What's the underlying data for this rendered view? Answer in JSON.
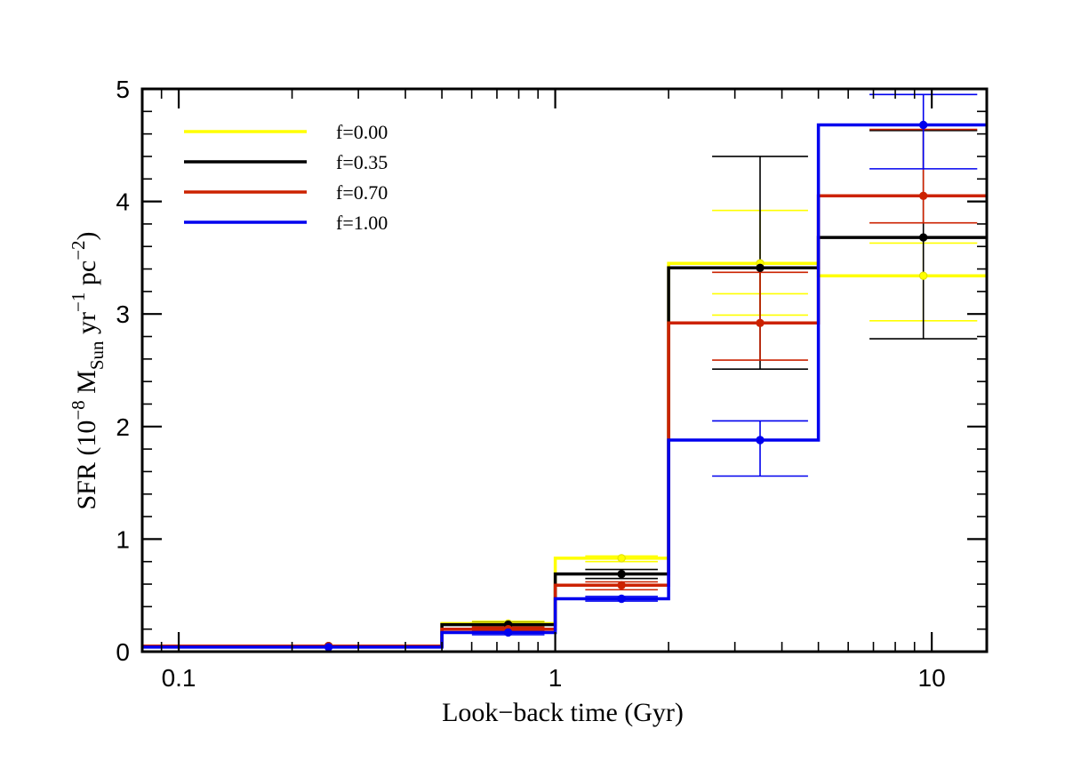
{
  "chart_data": {
    "type": "line",
    "subtype": "step-histogram-with-errorbars",
    "xscale": "log",
    "xlim": [
      0.08,
      14
    ],
    "ylim": [
      0,
      5
    ],
    "xlabel": "Look−back time (Gyr)",
    "ylabel": {
      "prefix": "SFR (10",
      "exp1": "−8",
      "mid1": " M",
      "sub": "Sun",
      "mid2": " yr",
      "exp2": "−1",
      "mid3": " pc",
      "exp3": "−2",
      "suffix": ")"
    },
    "xticks": [
      {
        "value": 0.1,
        "label": "0.1"
      },
      {
        "value": 1,
        "label": "1"
      },
      {
        "value": 10,
        "label": "10"
      }
    ],
    "yticks": [
      {
        "value": 0,
        "label": "0"
      },
      {
        "value": 1,
        "label": "1"
      },
      {
        "value": 2,
        "label": "2"
      },
      {
        "value": 3,
        "label": "3"
      },
      {
        "value": 4,
        "label": "4"
      },
      {
        "value": 5,
        "label": "5"
      }
    ],
    "bin_edges": [
      0.08,
      0.5,
      1.0,
      2.0,
      5.0,
      14.0
    ],
    "bin_centers": [
      0.25,
      0.75,
      1.5,
      3.5,
      9.5
    ],
    "legend_position": "top-left",
    "series": [
      {
        "name": "f=0.00",
        "color": "#ffff00",
        "values": [
          0.05,
          0.25,
          0.83,
          3.45,
          3.34
        ],
        "err_lo": [
          0.045,
          0.22,
          0.8,
          2.99,
          2.94
        ],
        "err_hi": [
          0.055,
          0.27,
          0.85,
          3.92,
          3.63
        ],
        "err_mid": [
          null,
          null,
          null,
          3.18,
          null
        ]
      },
      {
        "name": "f=0.35",
        "color": "#000000",
        "values": [
          0.05,
          0.24,
          0.69,
          3.41,
          3.68
        ],
        "err_lo": [
          0.045,
          0.21,
          0.65,
          2.51,
          2.78
        ],
        "err_hi": [
          0.055,
          0.26,
          0.73,
          4.4,
          4.63
        ],
        "err_mid": [
          null,
          null,
          null,
          null,
          null
        ]
      },
      {
        "name": "f=0.70",
        "color": "#cc2200",
        "values": [
          0.05,
          0.2,
          0.59,
          2.92,
          4.05
        ],
        "err_lo": [
          0.045,
          0.18,
          0.55,
          2.59,
          3.81
        ],
        "err_hi": [
          0.055,
          0.22,
          0.62,
          3.37,
          4.64
        ],
        "err_mid": [
          null,
          null,
          null,
          null,
          null
        ]
      },
      {
        "name": "f=1.00",
        "color": "#0000ee",
        "values": [
          0.04,
          0.17,
          0.47,
          1.88,
          4.68
        ],
        "err_lo": [
          0.035,
          0.15,
          0.45,
          1.56,
          4.29
        ],
        "err_hi": [
          0.045,
          0.19,
          0.49,
          2.05,
          4.95
        ],
        "err_mid": [
          null,
          null,
          null,
          null,
          null
        ]
      }
    ]
  }
}
